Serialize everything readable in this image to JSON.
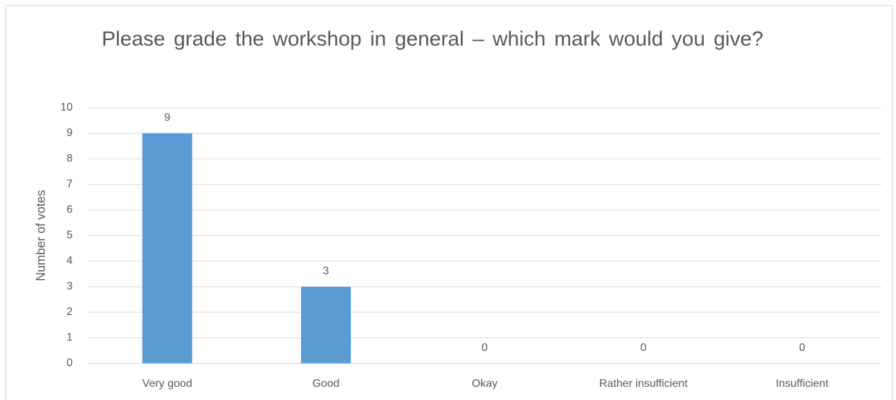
{
  "chart_data": {
    "type": "bar",
    "title": "Please grade the workshop in general – which mark would you give?",
    "y_label": "Number of votes",
    "categories": [
      "Very good",
      "Good",
      "Okay",
      "Rather insufficient",
      "Insufficient"
    ],
    "values": [
      9,
      3,
      0,
      0,
      0
    ],
    "color": "#5b9bd5",
    "ylim": [
      0,
      10
    ],
    "yticks": [
      0,
      1,
      2,
      3,
      4,
      5,
      6,
      7,
      8,
      9,
      10
    ],
    "grid": true
  }
}
